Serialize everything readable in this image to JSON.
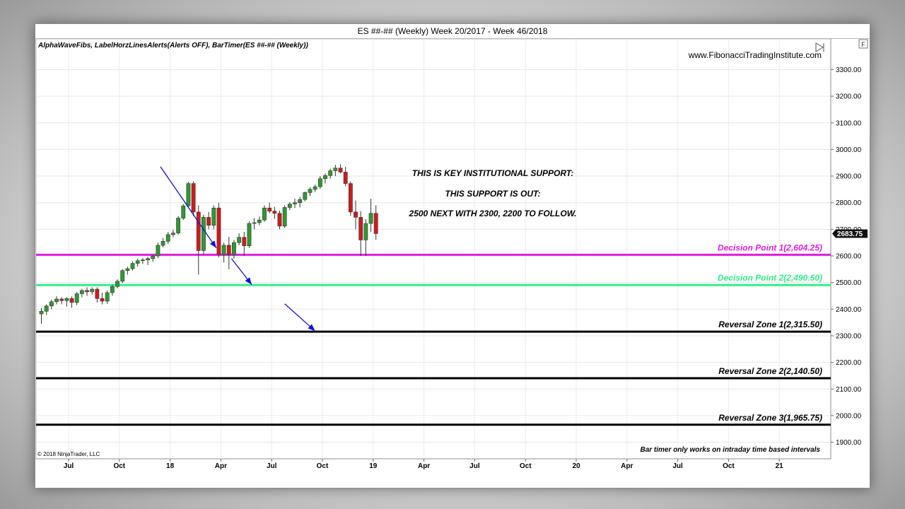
{
  "window": {
    "title": "ES ##-## (Weekly)  Week 20/2017 - Week 46/2018"
  },
  "indicators_label": "AlphaWaveFibs, LabelHorzLinesAlerts(Alerts OFF), BarTimer(ES ##-## (Weekly))",
  "watermark": "www.FibonacciTradingInstitute.com",
  "copyright": "© 2018 NinjaTrader, LLC",
  "bar_timer_note": "Bar timer only works on intraday time based intervals",
  "axis_button_label": "F",
  "colors": {
    "up_candle": "#2e9a2e",
    "down_candle": "#d11a1a",
    "decision1": "#e020e0",
    "decision2": "#33ee88",
    "reversal": "#000000",
    "arrow": "#1010e0"
  },
  "chart_data": {
    "type": "candlestick",
    "title": "ES ##-## (Weekly)  Week 20/2017 - Week 46/2018",
    "ylim": [
      1870,
      3380
    ],
    "y_ticks": [
      "3300.00",
      "3200.00",
      "3100.00",
      "3000.00",
      "2900.00",
      "2800.00",
      "2700.00",
      "2600.00",
      "2500.00",
      "2400.00",
      "2300.00",
      "2200.00",
      "2100.00",
      "2000.00",
      "1900.00"
    ],
    "x_ticks": [
      "Jul",
      "Oct",
      "18",
      "Apr",
      "Jul",
      "Oct",
      "19",
      "Apr",
      "Jul",
      "Oct",
      "20",
      "Apr",
      "Jul",
      "Oct",
      "21"
    ],
    "last_price": "2683.75",
    "candles": [
      {
        "o": 2382,
        "h": 2405,
        "l": 2345,
        "c": 2392
      },
      {
        "o": 2392,
        "h": 2418,
        "l": 2378,
        "c": 2412
      },
      {
        "o": 2412,
        "h": 2436,
        "l": 2400,
        "c": 2428
      },
      {
        "o": 2428,
        "h": 2448,
        "l": 2418,
        "c": 2438
      },
      {
        "o": 2438,
        "h": 2445,
        "l": 2418,
        "c": 2432
      },
      {
        "o": 2432,
        "h": 2445,
        "l": 2410,
        "c": 2440
      },
      {
        "o": 2440,
        "h": 2448,
        "l": 2405,
        "c": 2425
      },
      {
        "o": 2425,
        "h": 2465,
        "l": 2415,
        "c": 2458
      },
      {
        "o": 2458,
        "h": 2476,
        "l": 2445,
        "c": 2470
      },
      {
        "o": 2470,
        "h": 2482,
        "l": 2450,
        "c": 2465
      },
      {
        "o": 2465,
        "h": 2482,
        "l": 2455,
        "c": 2475
      },
      {
        "o": 2475,
        "h": 2482,
        "l": 2425,
        "c": 2440
      },
      {
        "o": 2440,
        "h": 2462,
        "l": 2418,
        "c": 2430
      },
      {
        "o": 2430,
        "h": 2470,
        "l": 2420,
        "c": 2462
      },
      {
        "o": 2462,
        "h": 2492,
        "l": 2450,
        "c": 2485
      },
      {
        "o": 2485,
        "h": 2512,
        "l": 2478,
        "c": 2505
      },
      {
        "o": 2505,
        "h": 2550,
        "l": 2498,
        "c": 2545
      },
      {
        "o": 2545,
        "h": 2560,
        "l": 2530,
        "c": 2552
      },
      {
        "o": 2552,
        "h": 2580,
        "l": 2545,
        "c": 2572
      },
      {
        "o": 2572,
        "h": 2590,
        "l": 2560,
        "c": 2582
      },
      {
        "o": 2582,
        "h": 2592,
        "l": 2570,
        "c": 2585
      },
      {
        "o": 2585,
        "h": 2596,
        "l": 2566,
        "c": 2590
      },
      {
        "o": 2590,
        "h": 2604,
        "l": 2578,
        "c": 2600
      },
      {
        "o": 2600,
        "h": 2650,
        "l": 2592,
        "c": 2640
      },
      {
        "o": 2640,
        "h": 2668,
        "l": 2632,
        "c": 2655
      },
      {
        "o": 2655,
        "h": 2690,
        "l": 2645,
        "c": 2680
      },
      {
        "o": 2680,
        "h": 2698,
        "l": 2670,
        "c": 2686
      },
      {
        "o": 2686,
        "h": 2750,
        "l": 2680,
        "c": 2742
      },
      {
        "o": 2742,
        "h": 2795,
        "l": 2735,
        "c": 2788
      },
      {
        "o": 2788,
        "h": 2878,
        "l": 2782,
        "c": 2872
      },
      {
        "o": 2872,
        "h": 2880,
        "l": 2750,
        "c": 2765
      },
      {
        "o": 2765,
        "h": 2790,
        "l": 2530,
        "c": 2620
      },
      {
        "o": 2620,
        "h": 2755,
        "l": 2605,
        "c": 2745
      },
      {
        "o": 2745,
        "h": 2765,
        "l": 2700,
        "c": 2715
      },
      {
        "o": 2715,
        "h": 2790,
        "l": 2700,
        "c": 2780
      },
      {
        "o": 2780,
        "h": 2800,
        "l": 2595,
        "c": 2605
      },
      {
        "o": 2605,
        "h": 2650,
        "l": 2575,
        "c": 2640
      },
      {
        "o": 2640,
        "h": 2672,
        "l": 2550,
        "c": 2605
      },
      {
        "o": 2605,
        "h": 2660,
        "l": 2590,
        "c": 2650
      },
      {
        "o": 2650,
        "h": 2685,
        "l": 2640,
        "c": 2670
      },
      {
        "o": 2670,
        "h": 2690,
        "l": 2600,
        "c": 2638
      },
      {
        "o": 2638,
        "h": 2730,
        "l": 2630,
        "c": 2722
      },
      {
        "o": 2722,
        "h": 2742,
        "l": 2700,
        "c": 2725
      },
      {
        "o": 2725,
        "h": 2748,
        "l": 2715,
        "c": 2735
      },
      {
        "o": 2735,
        "h": 2790,
        "l": 2728,
        "c": 2780
      },
      {
        "o": 2780,
        "h": 2800,
        "l": 2760,
        "c": 2768
      },
      {
        "o": 2768,
        "h": 2785,
        "l": 2740,
        "c": 2760
      },
      {
        "o": 2760,
        "h": 2770,
        "l": 2700,
        "c": 2712
      },
      {
        "o": 2712,
        "h": 2790,
        "l": 2705,
        "c": 2782
      },
      {
        "o": 2782,
        "h": 2802,
        "l": 2772,
        "c": 2795
      },
      {
        "o": 2795,
        "h": 2815,
        "l": 2780,
        "c": 2800
      },
      {
        "o": 2800,
        "h": 2822,
        "l": 2782,
        "c": 2812
      },
      {
        "o": 2812,
        "h": 2842,
        "l": 2805,
        "c": 2838
      },
      {
        "o": 2838,
        "h": 2858,
        "l": 2825,
        "c": 2850
      },
      {
        "o": 2850,
        "h": 2868,
        "l": 2840,
        "c": 2860
      },
      {
        "o": 2860,
        "h": 2900,
        "l": 2852,
        "c": 2890
      },
      {
        "o": 2890,
        "h": 2910,
        "l": 2872,
        "c": 2902
      },
      {
        "o": 2902,
        "h": 2928,
        "l": 2890,
        "c": 2920
      },
      {
        "o": 2920,
        "h": 2942,
        "l": 2900,
        "c": 2930
      },
      {
        "o": 2930,
        "h": 2944,
        "l": 2910,
        "c": 2915
      },
      {
        "o": 2915,
        "h": 2935,
        "l": 2862,
        "c": 2872
      },
      {
        "o": 2872,
        "h": 2880,
        "l": 2750,
        "c": 2765
      },
      {
        "o": 2765,
        "h": 2808,
        "l": 2700,
        "c": 2745
      },
      {
        "o": 2745,
        "h": 2768,
        "l": 2600,
        "c": 2660
      },
      {
        "o": 2660,
        "h": 2738,
        "l": 2600,
        "c": 2722
      },
      {
        "o": 2722,
        "h": 2815,
        "l": 2690,
        "c": 2760
      },
      {
        "o": 2760,
        "h": 2790,
        "l": 2660,
        "c": 2684
      }
    ],
    "levels": [
      {
        "label": "Decision Point 1(2,604.25)",
        "value": 2604.25,
        "color": "#e020e0",
        "kind": "decision1"
      },
      {
        "label": "Decision Point 2(2,490.50)",
        "value": 2490.5,
        "color": "#33ee88",
        "kind": "decision2"
      },
      {
        "label": "Reversal Zone 1(2,315.50)",
        "value": 2315.5,
        "color": "#000000",
        "kind": "reversal"
      },
      {
        "label": "Reversal  Zone 2(2,140.50)",
        "value": 2140.5,
        "color": "#000000",
        "kind": "reversal"
      },
      {
        "label": "Reversal Zone 3(1,965.75)",
        "value": 1965.75,
        "color": "#000000",
        "kind": "reversal"
      }
    ],
    "annotations": [
      "THIS IS KEY INSTITUTIONAL SUPPORT:",
      "THIS SUPPORT IS OUT:",
      "2500 NEXT WITH 2300, 2200 TO FOLLOW."
    ],
    "arrows": [
      {
        "from": [
          23.5,
          2935
        ],
        "to": [
          34.5,
          2630
        ]
      },
      {
        "from": [
          37.5,
          2590
        ],
        "to": [
          41.5,
          2492
        ]
      },
      {
        "from": [
          48,
          2420
        ],
        "to": [
          54,
          2318
        ]
      }
    ]
  }
}
